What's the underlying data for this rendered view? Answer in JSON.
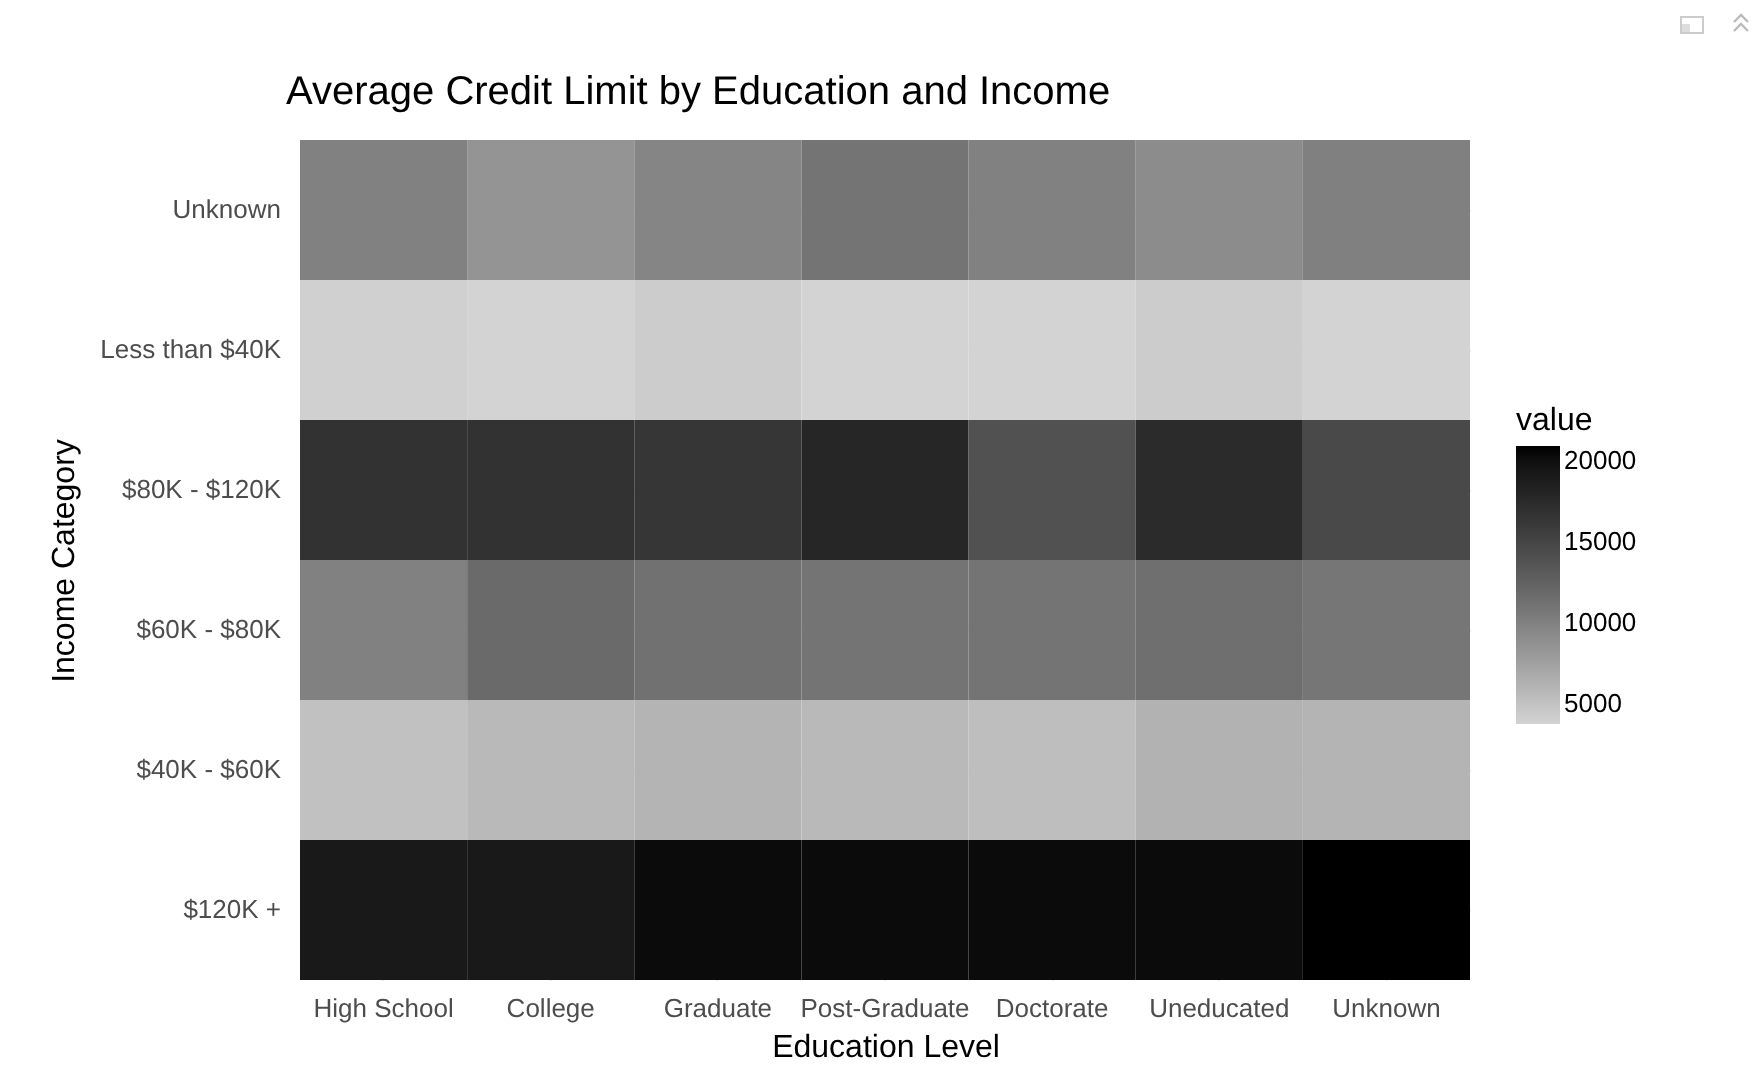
{
  "chart_data": {
    "type": "heatmap",
    "title": "Average Credit Limit by Education and Income",
    "xlabel": "Education Level",
    "ylabel": "Income Category",
    "clabel": "value",
    "categories": [
      "High School",
      "College",
      "Graduate",
      "Post-Graduate",
      "Doctorate",
      "Uneducated",
      "Unknown"
    ],
    "y_categories": [
      "Unknown",
      "Less than $40K",
      "$80K - $120K",
      "$60K - $80K",
      "$40K - $60K",
      "$120K +"
    ],
    "cells": [
      [
        10000,
        8500,
        9700,
        11000,
        10000,
        9100,
        10100
      ],
      [
        4000,
        3800,
        4300,
        3800,
        3800,
        4300,
        3800
      ],
      [
        16700,
        16700,
        16300,
        17800,
        13900,
        17400,
        14600
      ],
      [
        10000,
        11800,
        11300,
        11000,
        11000,
        11400,
        10900
      ],
      [
        5100,
        5700,
        6100,
        5700,
        5300,
        6200,
        6100
      ],
      [
        19100,
        19100,
        20300,
        20300,
        20300,
        20300,
        20900
      ]
    ],
    "clim": [
      3800,
      20900
    ],
    "cticks": [
      5000,
      10000,
      15000,
      20000
    ],
    "grid": true
  }
}
